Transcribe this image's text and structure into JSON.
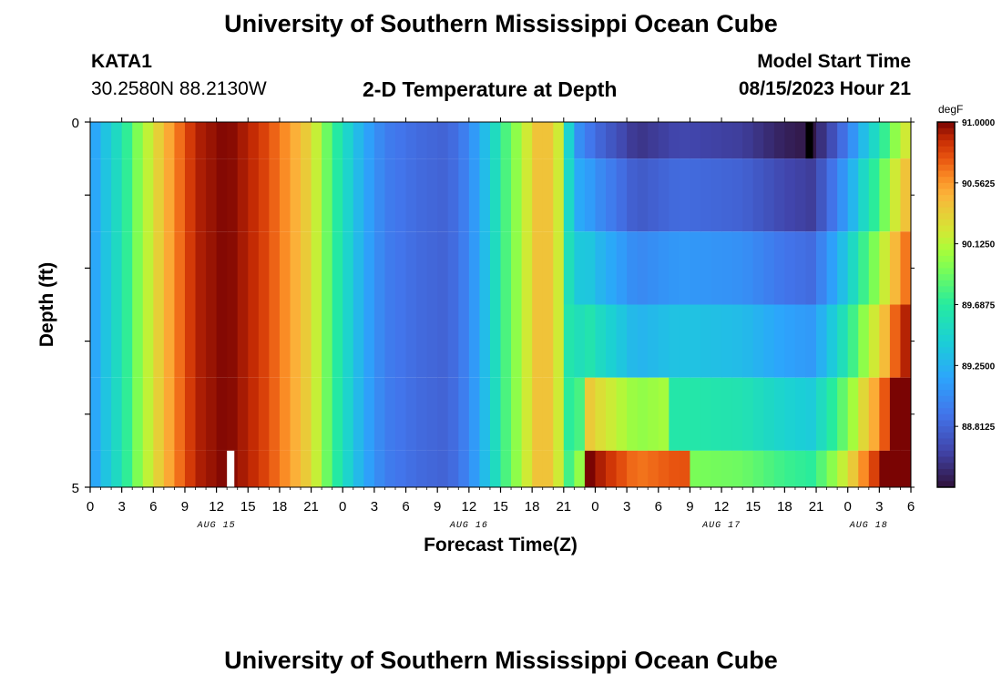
{
  "page": {
    "title": "University of Southern Mississippi Ocean Cube",
    "title_repeat": "University of Southern Mississippi Ocean Cube"
  },
  "header": {
    "station": "KATA1",
    "coords": "30.2580N  88.2130W",
    "plot_title": "2-D Temperature at Depth",
    "model_label": "Model Start Time",
    "model_time": "08/15/2023 Hour 21"
  },
  "chart_data": {
    "type": "heatmap",
    "title": "2-D Temperature at Depth",
    "xlabel": "Forecast Time(Z)",
    "ylabel": "Depth (ft)",
    "x_range_hours": [
      0,
      78
    ],
    "y_range": [
      0,
      5
    ],
    "y_ticks": [
      "0",
      "5"
    ],
    "x_tick_labels": [
      "0",
      "3",
      "6",
      "9",
      "12",
      "15",
      "18",
      "21",
      "0",
      "3",
      "6",
      "9",
      "12",
      "15",
      "18",
      "21",
      "0",
      "3",
      "6",
      "9",
      "12",
      "15",
      "18",
      "21",
      "0",
      "3",
      "6"
    ],
    "date_labels": [
      {
        "hour": 12,
        "label": "AUG 15"
      },
      {
        "hour": 36,
        "label": "AUG 16"
      },
      {
        "hour": 60,
        "label": "AUG 17"
      },
      {
        "hour": 74,
        "label": "AUG 18"
      }
    ],
    "colorbar": {
      "unit": "degF",
      "min": 88.375,
      "max": 91.0,
      "tick_labels": [
        "91.0000",
        "90.5625",
        "90.1250",
        "89.6875",
        "89.2500",
        "88.8125"
      ],
      "tick_values": [
        91.0,
        90.5625,
        90.125,
        89.6875,
        89.25,
        88.8125
      ]
    },
    "depth_layers_ft": [
      [
        0,
        0.5
      ],
      [
        0.5,
        1.5
      ],
      [
        1.5,
        2.5
      ],
      [
        2.5,
        3.5
      ],
      [
        3.5,
        4.5
      ],
      [
        4.5,
        5
      ]
    ],
    "surface_control_points": [
      [
        0,
        89.1
      ],
      [
        3,
        89.6
      ],
      [
        4.5,
        89.95
      ],
      [
        6,
        90.25
      ],
      [
        8,
        90.6
      ],
      [
        10,
        90.9
      ],
      [
        13,
        91.0
      ],
      [
        16,
        90.85
      ],
      [
        19,
        90.55
      ],
      [
        21,
        90.3
      ],
      [
        22.5,
        89.9
      ],
      [
        24,
        89.55
      ],
      [
        26,
        89.2
      ],
      [
        28,
        88.95
      ],
      [
        31,
        88.85
      ],
      [
        34,
        88.8
      ],
      [
        36,
        89.0
      ],
      [
        38,
        89.4
      ],
      [
        39.5,
        89.8
      ],
      [
        41,
        90.1
      ],
      [
        43,
        90.5
      ],
      [
        44.5,
        90.2
      ],
      [
        45,
        89.8
      ],
      [
        46,
        89.1
      ],
      [
        48,
        88.85
      ],
      [
        52,
        88.55
      ],
      [
        56,
        88.65
      ],
      [
        62,
        88.6
      ],
      [
        66,
        88.45
      ],
      [
        68.5,
        88.4
      ],
      [
        70,
        88.6
      ],
      [
        72,
        88.95
      ],
      [
        73.5,
        89.3
      ],
      [
        75,
        89.6
      ],
      [
        76.5,
        90.0
      ],
      [
        78,
        90.3
      ]
    ],
    "deep_offsets_degF": [
      0,
      0.2,
      0.45,
      0.7,
      1.0,
      1.3
    ],
    "missing_cells": [
      {
        "hour": 13,
        "layer": 5,
        "fill": "white"
      },
      {
        "hour": 68,
        "layer": 0,
        "fill": "black"
      }
    ]
  }
}
